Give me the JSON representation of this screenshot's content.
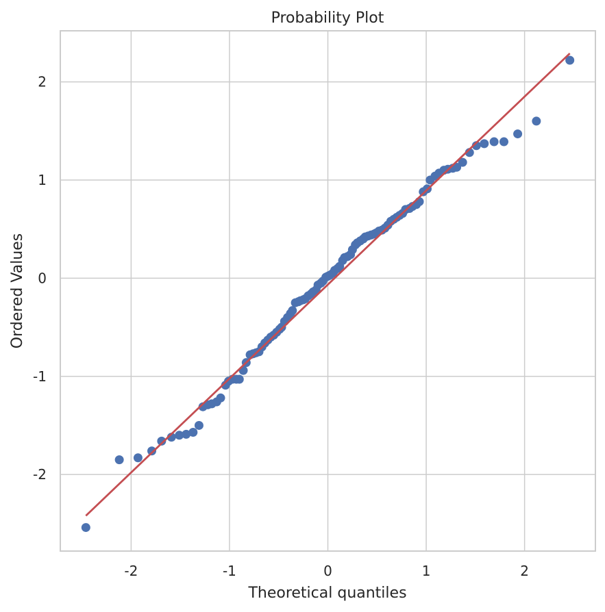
{
  "chart_data": {
    "type": "scatter",
    "title": "Probability Plot",
    "xlabel": "Theoretical quantiles",
    "ylabel": "Ordered Values",
    "xlim": [
      -2.72,
      2.72
    ],
    "ylim": [
      -2.78,
      2.52
    ],
    "grid": true,
    "x_ticks": [
      -2,
      -1,
      0,
      1,
      2
    ],
    "x_tick_labels": [
      "-2",
      "-1",
      "0",
      "1",
      "2"
    ],
    "y_ticks": [
      -2,
      -1,
      0,
      1,
      2
    ],
    "y_tick_labels": [
      "-2",
      "-1",
      "0",
      "1",
      "2"
    ],
    "colors": {
      "points": "#4c72b0",
      "fit_line": "#c44e52",
      "grid": "#cccccc"
    },
    "fit_line": {
      "x": [
        -2.46,
        2.46
      ],
      "y": [
        -2.42,
        2.29
      ]
    },
    "series": [
      {
        "x": [
          -2.46,
          -2.12,
          -1.93,
          -1.79,
          -1.69,
          -1.59,
          -1.51,
          -1.44,
          -1.37,
          -1.31,
          -1.27,
          -1.22,
          -1.18,
          -1.13,
          -1.09,
          -1.04,
          -1.01,
          -0.97,
          -0.93,
          -0.9,
          -0.86,
          -0.83,
          -0.79,
          -0.76,
          -0.73,
          -0.7,
          -0.67,
          -0.64,
          -0.61,
          -0.58,
          -0.55,
          -0.52,
          -0.49,
          -0.47,
          -0.44,
          -0.41,
          -0.38,
          -0.36,
          -0.33,
          -0.3,
          -0.28,
          -0.25,
          -0.23,
          -0.2,
          -0.17,
          -0.15,
          -0.12,
          -0.1,
          -0.07,
          -0.05,
          -0.02,
          0.0,
          0.02,
          0.05,
          0.07,
          0.1,
          0.12,
          0.15,
          0.17,
          0.2,
          0.23,
          0.25,
          0.28,
          0.3,
          0.33,
          0.36,
          0.38,
          0.41,
          0.44,
          0.47,
          0.49,
          0.52,
          0.55,
          0.58,
          0.61,
          0.64,
          0.67,
          0.7,
          0.73,
          0.76,
          0.79,
          0.83,
          0.86,
          0.9,
          0.93,
          0.97,
          1.01,
          1.04,
          1.09,
          1.13,
          1.18,
          1.22,
          1.27,
          1.31,
          1.37,
          1.44,
          1.51,
          1.59,
          1.69,
          1.79,
          1.93,
          2.12,
          2.46
        ],
        "y": [
          -2.54,
          -1.85,
          -1.83,
          -1.76,
          -1.66,
          -1.62,
          -1.6,
          -1.59,
          -1.57,
          -1.5,
          -1.31,
          -1.29,
          -1.28,
          -1.26,
          -1.22,
          -1.09,
          -1.05,
          -1.03,
          -1.03,
          -1.03,
          -0.94,
          -0.86,
          -0.78,
          -0.77,
          -0.76,
          -0.75,
          -0.7,
          -0.66,
          -0.63,
          -0.6,
          -0.58,
          -0.55,
          -0.52,
          -0.5,
          -0.44,
          -0.4,
          -0.36,
          -0.33,
          -0.25,
          -0.24,
          -0.23,
          -0.22,
          -0.21,
          -0.18,
          -0.16,
          -0.14,
          -0.12,
          -0.07,
          -0.05,
          -0.03,
          0.01,
          0.02,
          0.03,
          0.05,
          0.08,
          0.1,
          0.12,
          0.18,
          0.21,
          0.22,
          0.24,
          0.29,
          0.34,
          0.36,
          0.38,
          0.4,
          0.42,
          0.43,
          0.44,
          0.45,
          0.46,
          0.48,
          0.49,
          0.51,
          0.54,
          0.58,
          0.6,
          0.62,
          0.64,
          0.66,
          0.7,
          0.71,
          0.73,
          0.75,
          0.78,
          0.88,
          0.91,
          1.0,
          1.04,
          1.07,
          1.1,
          1.11,
          1.12,
          1.13,
          1.18,
          1.28,
          1.35,
          1.37,
          1.39,
          1.39,
          1.47,
          1.6,
          2.22
        ]
      }
    ]
  }
}
